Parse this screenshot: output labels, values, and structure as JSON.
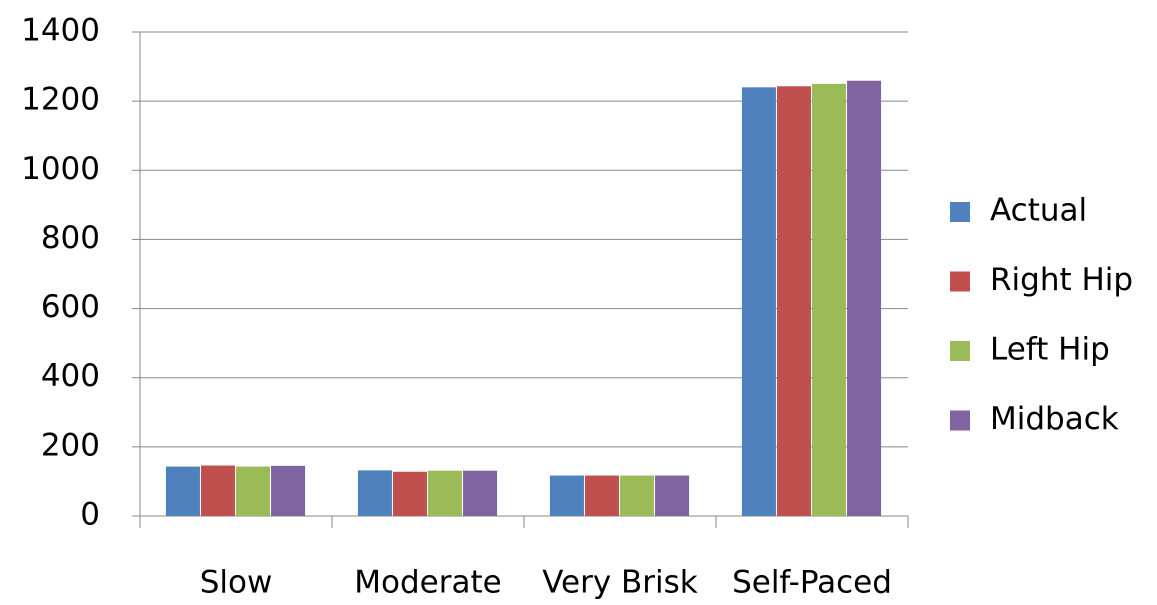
{
  "chart_data": {
    "type": "bar",
    "categories": [
      "Slow",
      "Moderate",
      "Very Brisk",
      "Self-Paced"
    ],
    "series": [
      {
        "name": "Actual",
        "color": "#4f81bd",
        "values": [
          143,
          132,
          117,
          1240
        ]
      },
      {
        "name": "Right Hip",
        "color": "#c0504d",
        "values": [
          146,
          128,
          117,
          1243
        ]
      },
      {
        "name": "Left Hip",
        "color": "#9bbb59",
        "values": [
          143,
          131,
          117,
          1250
        ]
      },
      {
        "name": "Midback",
        "color": "#8064a2",
        "values": [
          145,
          131,
          117,
          1259
        ]
      }
    ],
    "ylim": [
      0,
      1400
    ],
    "yticks": [
      0,
      200,
      400,
      600,
      800,
      1000,
      1200,
      1400
    ],
    "grid": true,
    "legend": "right"
  }
}
